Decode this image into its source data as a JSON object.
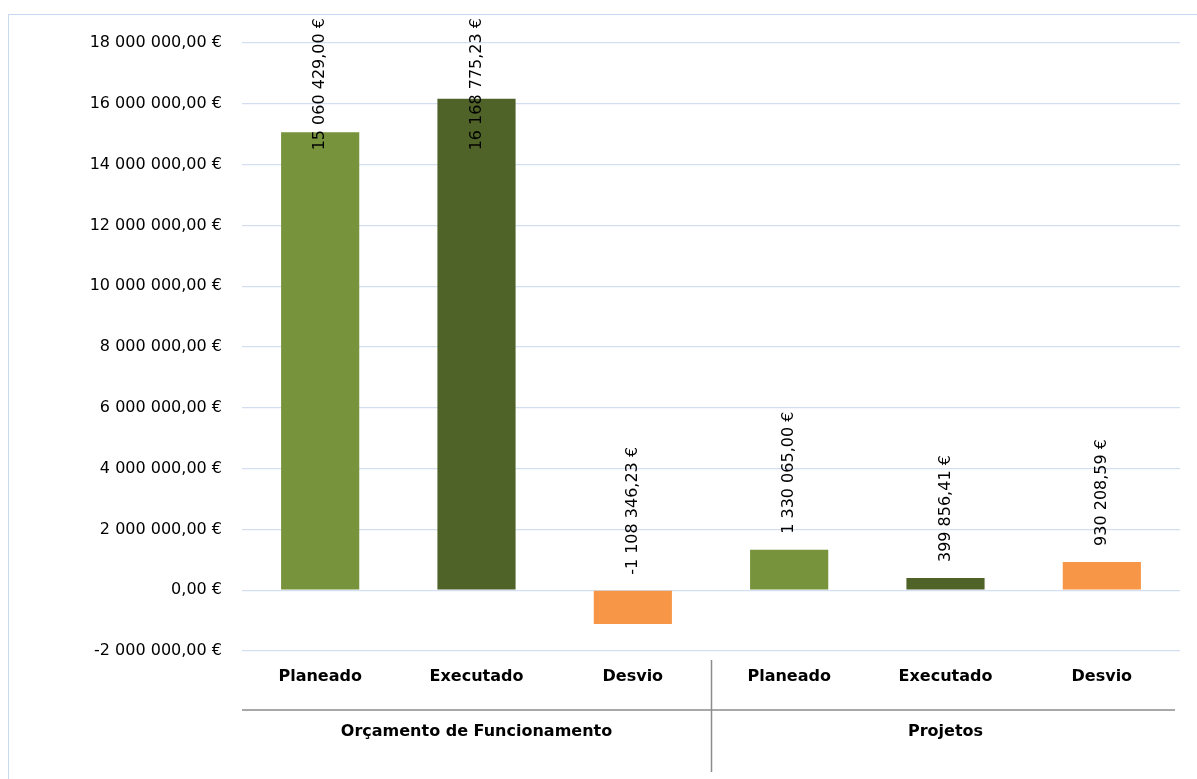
{
  "chart_data": {
    "type": "bar",
    "categories": [
      "Planeado",
      "Executado",
      "Desvio",
      "Planeado",
      "Executado",
      "Desvio"
    ],
    "values": [
      15060429.0,
      16168775.23,
      -1108346.23,
      1330065.0,
      399856.41,
      930208.59
    ],
    "colors": [
      "#77933c",
      "#4f6228",
      "#f79646",
      "#77933c",
      "#4f6228",
      "#f79646"
    ],
    "value_labels": [
      "15 060 429,00 €",
      "16 168 775,23 €",
      "-1 108 346,23 €",
      "1 330 065,00 €",
      "399 856,41 €",
      "930 208,59 €"
    ],
    "ylim": [
      -2000000,
      18000000
    ],
    "yticks": [
      {
        "value": -2000000,
        "label": "-2 000 000,00 €"
      },
      {
        "value": 0,
        "label": "0,00 €"
      },
      {
        "value": 2000000,
        "label": "2 000 000,00 €"
      },
      {
        "value": 4000000,
        "label": "4 000 000,00 €"
      },
      {
        "value": 6000000,
        "label": "6 000 000,00 €"
      },
      {
        "value": 8000000,
        "label": "8 000 000,00 €"
      },
      {
        "value": 10000000,
        "label": "10 000 000,00 €"
      },
      {
        "value": 12000000,
        "label": "12 000 000,00 €"
      },
      {
        "value": 14000000,
        "label": "14 000 000,00 €"
      },
      {
        "value": 16000000,
        "label": "16 000 000,00 €"
      },
      {
        "value": 18000000,
        "label": "18 000 000,00 €"
      }
    ],
    "grid": "y",
    "legend": false,
    "annotations": [
      "Orçamento de Funcionamento",
      "Projetos"
    ]
  }
}
